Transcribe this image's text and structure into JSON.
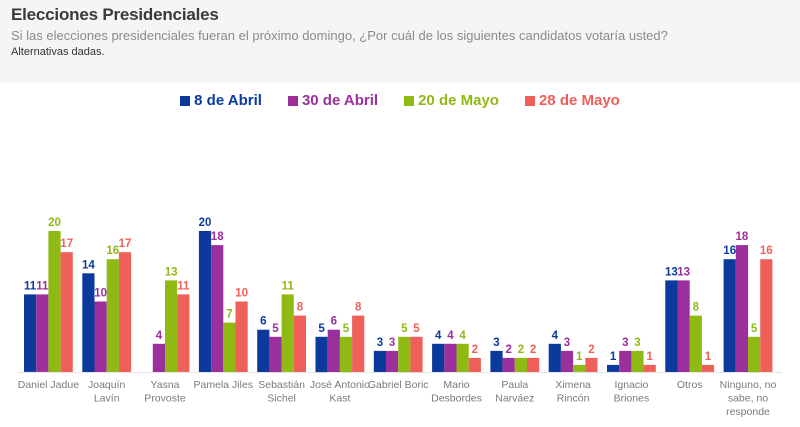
{
  "header": {
    "title": "Elecciones Presidenciales",
    "subtitle": "Si las elecciones presidenciales fueran el próximo domingo, ¿Por cuál de los siguientes candidatos votaría usted?",
    "note": "Alternativas dadas."
  },
  "chart_data": {
    "type": "bar",
    "title": "Elecciones Presidenciales",
    "xlabel": "",
    "ylabel": "",
    "ylim": [
      0,
      20
    ],
    "grid": false,
    "legend_position": "top-center",
    "categories": [
      [
        "Daniel Jadue"
      ],
      [
        "Joaquín",
        "Lavín"
      ],
      [
        "Yasna",
        "Provoste"
      ],
      [
        "Pamela Jiles"
      ],
      [
        "Sebastián",
        "Sichel"
      ],
      [
        "José Antonio",
        "Kast"
      ],
      [
        "Gabriel Boric"
      ],
      [
        "Mario",
        "Desbordes"
      ],
      [
        "Paula",
        "Narváez"
      ],
      [
        "Ximena",
        "Rincón"
      ],
      [
        "Ignacio",
        "Briones"
      ],
      [
        "Otros"
      ],
      [
        "Ninguno, no",
        "sabe, no",
        "responde"
      ]
    ],
    "series": [
      {
        "name": "8 de Abril",
        "color": "#0b3a9c",
        "values": [
          11,
          14,
          null,
          20,
          6,
          5,
          3,
          4,
          3,
          4,
          1,
          13,
          16
        ]
      },
      {
        "name": "30 de Abril",
        "color": "#9b2f9b",
        "values": [
          11,
          10,
          4,
          18,
          5,
          6,
          3,
          4,
          2,
          3,
          3,
          13,
          18
        ]
      },
      {
        "name": "20 de Mayo",
        "color": "#8fba13",
        "values": [
          20,
          16,
          13,
          7,
          11,
          5,
          5,
          4,
          2,
          1,
          3,
          8,
          5
        ]
      },
      {
        "name": "28 de Mayo",
        "color": "#f0605a",
        "values": [
          17,
          17,
          11,
          10,
          8,
          8,
          5,
          2,
          2,
          2,
          1,
          1,
          16
        ]
      }
    ]
  }
}
